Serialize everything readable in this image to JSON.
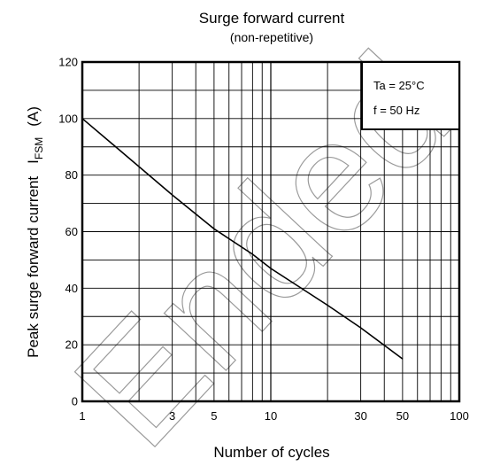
{
  "chart_data": {
    "type": "line",
    "title": "Surge forward current",
    "subtitle": "(non-repetitive)",
    "xlabel": "Number of cycles",
    "ylabel": "Peak surge forward current",
    "ylabel_symbol": "I",
    "ylabel_subscript": "FSM",
    "ylabel_unit": "(A)",
    "x_scale": "log",
    "xlim": [
      1,
      100
    ],
    "ylim": [
      0,
      120
    ],
    "grid": true,
    "x_ticks": [
      1,
      3,
      5,
      10,
      30,
      50,
      100
    ],
    "x_tick_labels": [
      "1",
      "3",
      "5",
      "10",
      "30",
      "50",
      "100"
    ],
    "y_ticks": [
      0,
      20,
      40,
      60,
      80,
      100,
      120
    ],
    "y_tick_labels": [
      "0",
      "20",
      "40",
      "60",
      "80",
      "100",
      "120"
    ],
    "conditions": [
      "Ta = 25°C",
      "f = 50 Hz"
    ],
    "legend_position": "top-right",
    "watermark": "Ended",
    "series": [
      {
        "x": [
          1,
          2,
          3,
          5,
          8,
          10,
          20,
          30,
          50
        ],
        "y": [
          100,
          83,
          73,
          61,
          52,
          47,
          34,
          26,
          15
        ]
      }
    ]
  }
}
